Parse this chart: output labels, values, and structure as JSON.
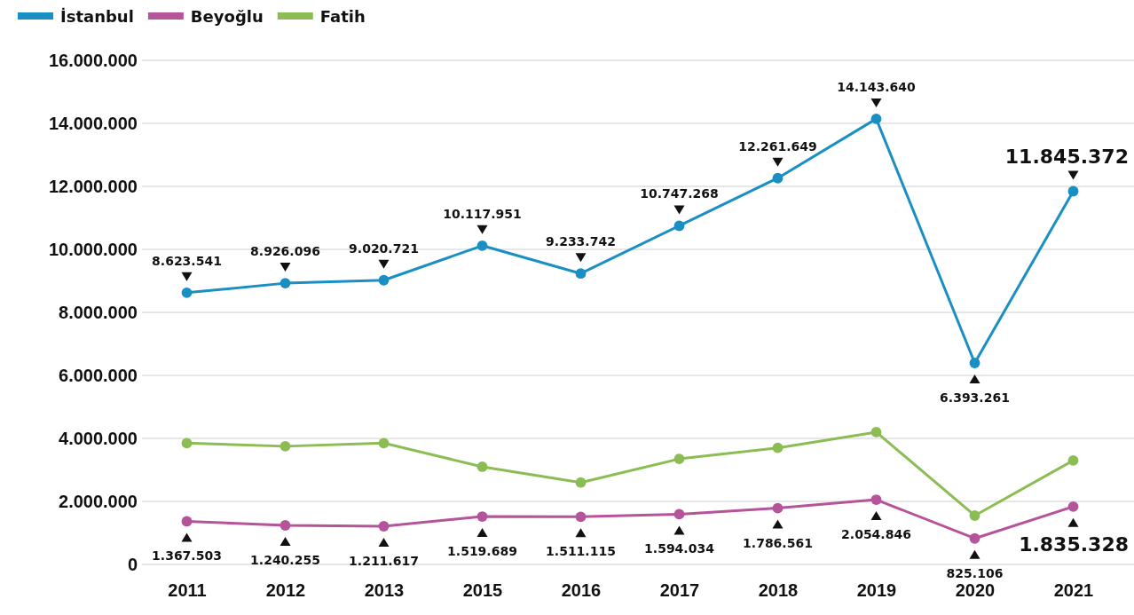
{
  "chart_data": {
    "type": "line",
    "categories": [
      "2011",
      "2012",
      "2013",
      "2015",
      "2016",
      "2017",
      "2018",
      "2019",
      "2020",
      "2021"
    ],
    "series": [
      {
        "name": "İstanbul",
        "color": "#1a8fc4",
        "values": [
          8623541,
          8926096,
          9020721,
          10117951,
          9233742,
          10747268,
          12261649,
          14143640,
          6393261,
          11845372
        ],
        "value_labels": [
          "8.623.541",
          "8.926.096",
          "9.020.721",
          "10.117.951",
          "9.233.742",
          "10.747.268",
          "12.261.649",
          "14.143.640",
          "6.393.261",
          "11.845.372"
        ]
      },
      {
        "name": "Beyoğlu",
        "color": "#b5549a",
        "values": [
          1367503,
          1240255,
          1211617,
          1519689,
          1511115,
          1594034,
          1786561,
          2054846,
          825106,
          1835328
        ],
        "value_labels": [
          "1.367.503",
          "1.240.255",
          "1.211.617",
          "1.519.689",
          "1.511.115",
          "1.594.034",
          "1.786.561",
          "2.054.846",
          "825.106",
          "1.835.328"
        ]
      },
      {
        "name": "Fatih",
        "color": "#8cbd54",
        "values": [
          3850000,
          3750000,
          3850000,
          3100000,
          2600000,
          3350000,
          3700000,
          4200000,
          1550000,
          3300000
        ]
      }
    ],
    "ylim": [
      0,
      16000000
    ],
    "yticks": [
      0,
      {
        "value": 2000000,
        "label": "2.000.000"
      },
      {
        "value": 4000000,
        "label": "4.000.000"
      },
      {
        "value": 6000000,
        "label": "6.000.000"
      },
      {
        "value": 8000000,
        "label": "8.000.000"
      },
      {
        "value": 10000000,
        "label": "10.000.000"
      },
      {
        "value": 12000000,
        "label": "12.000.000"
      },
      {
        "value": 14000000,
        "label": "14.000.000"
      },
      {
        "value": 16000000,
        "label": "16.000.000"
      }
    ],
    "grid": "y",
    "legend": "top left",
    "marker": "circle",
    "line_style": "solid"
  }
}
